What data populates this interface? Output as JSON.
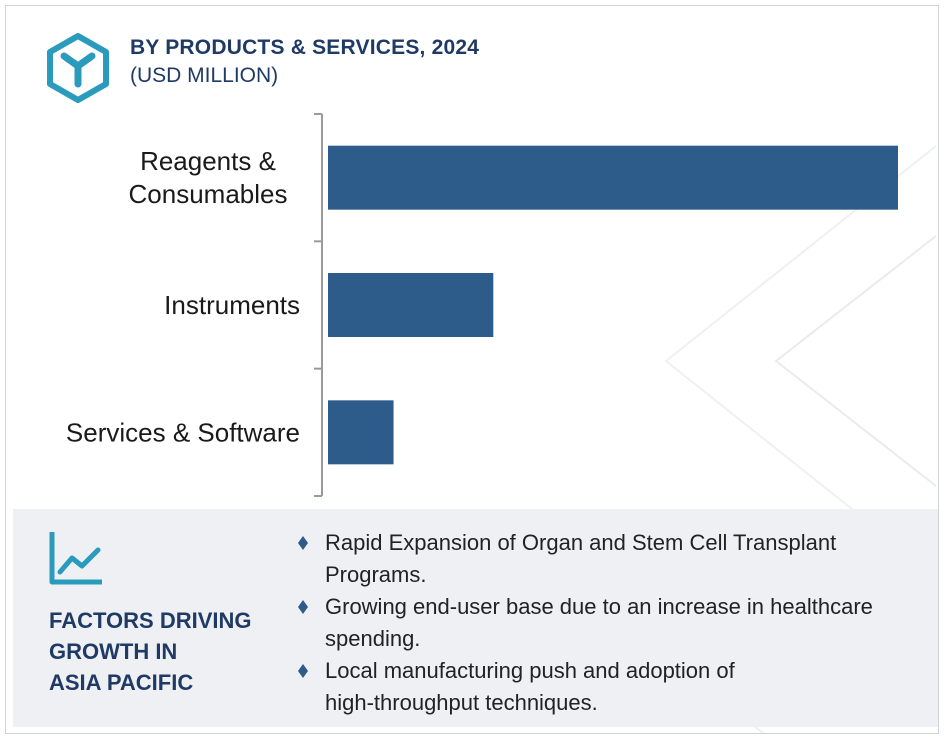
{
  "header": {
    "title": "BY PRODUCTS & SERVICES, 2024",
    "subtitle": "(USD MILLION)",
    "icon": "hexagon-y-logo-icon"
  },
  "colors": {
    "bar": "#2e5c8a",
    "title": "#1f3a64",
    "icon_teal": "#2a9bbd",
    "footer_bg": "#eef0f4",
    "axis": "#9a9a9a"
  },
  "chart_data": {
    "type": "bar",
    "orientation": "horizontal",
    "categories": [
      [
        "Reagents &",
        "Consumables"
      ],
      [
        "Instruments"
      ],
      [
        "Services & Software"
      ]
    ],
    "values": [
      100,
      29,
      11.5
    ],
    "xlim": [
      0,
      100
    ],
    "grid": false,
    "legend": "none"
  },
  "footer": {
    "title_lines": [
      "FACTORS DRIVING",
      "GROWTH IN",
      "ASIA PACIFIC"
    ],
    "icon": "trend-chart-icon",
    "bullets": [
      {
        "line1": "Rapid Expansion of Organ and Stem Cell Transplant",
        "line2": "Programs."
      },
      {
        "line1": "Growing end-user base due to an increase in healthcare",
        "line2": "spending."
      },
      {
        "line1": "Local manufacturing push and adoption of",
        "line2": "high-throughput techniques."
      }
    ]
  }
}
